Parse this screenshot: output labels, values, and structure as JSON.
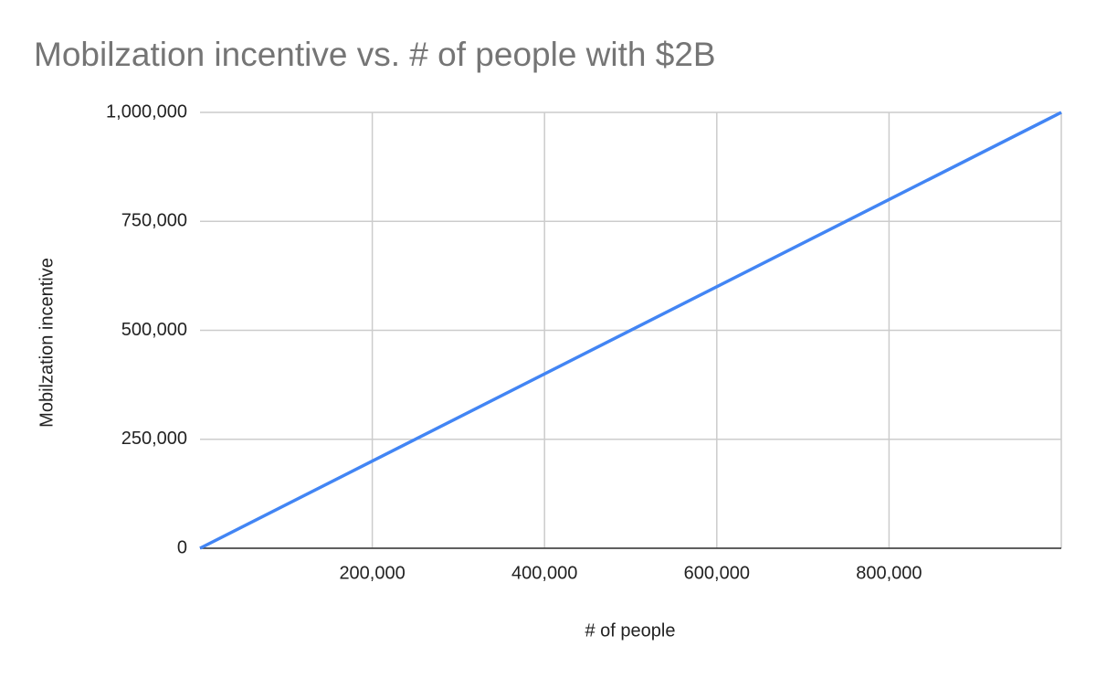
{
  "chart_data": {
    "type": "line",
    "title": "Mobilzation incentive vs. # of people with $2B",
    "x_label": "# of people",
    "y_label": "Mobilzation incentive",
    "x": [
      0,
      1000000
    ],
    "series": [
      {
        "name": "Mobilzation incentive",
        "color": "#4285f4",
        "values": [
          0,
          1000000
        ]
      }
    ],
    "xlim": [
      0,
      1000000
    ],
    "ylim": [
      0,
      1000000
    ],
    "xticks": [
      {
        "value": 200000,
        "label": "200,000"
      },
      {
        "value": 400000,
        "label": "400,000"
      },
      {
        "value": 600000,
        "label": "600,000"
      },
      {
        "value": 800000,
        "label": "800,000"
      }
    ],
    "yticks": [
      0,
      {
        "value": 250000,
        "label": "250,000"
      },
      {
        "value": 500000,
        "label": "500,000"
      },
      {
        "value": 750000,
        "label": "750,000"
      },
      {
        "value": 1000000,
        "label": "1,000,000"
      }
    ],
    "grid": true
  }
}
